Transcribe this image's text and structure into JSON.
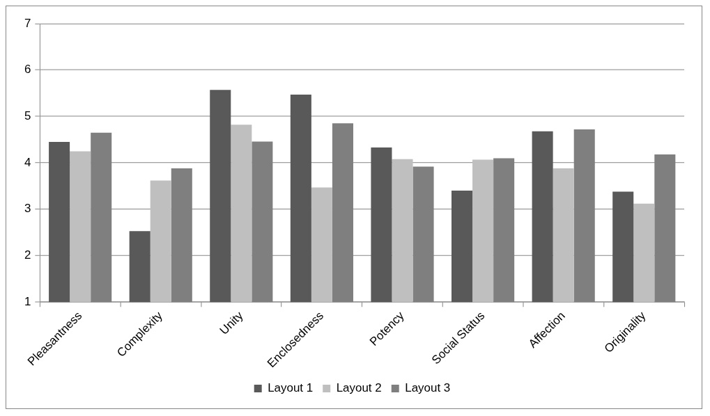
{
  "chart_data": {
    "type": "bar",
    "categories": [
      "Pleasantness",
      "Complexity",
      "Unity",
      "Enclosedness",
      "Potency",
      "Social Status",
      "Affection",
      "Originality"
    ],
    "series": [
      {
        "name": "Layout 1",
        "color": "#595959",
        "values": [
          4.45,
          2.53,
          5.57,
          5.47,
          4.33,
          3.4,
          4.68,
          3.38
        ]
      },
      {
        "name": "Layout 2",
        "color": "#bfbfbf",
        "values": [
          4.25,
          3.62,
          4.82,
          3.47,
          4.08,
          4.07,
          3.88,
          3.12
        ]
      },
      {
        "name": "Layout 3",
        "color": "#7f7f7f",
        "values": [
          4.65,
          3.88,
          4.46,
          4.85,
          3.92,
          4.1,
          4.72,
          4.18
        ]
      }
    ],
    "ylim": [
      1,
      7
    ],
    "yticks": [
      1,
      2,
      3,
      4,
      5,
      6,
      7
    ],
    "grid": "y",
    "legend": "bottom"
  }
}
